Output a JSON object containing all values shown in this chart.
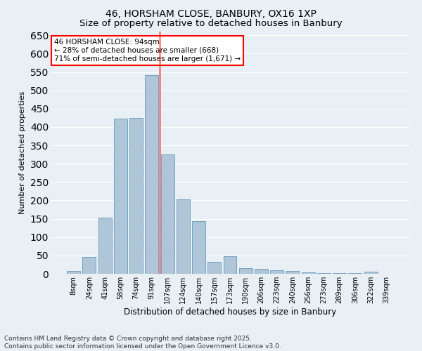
{
  "title": "46, HORSHAM CLOSE, BANBURY, OX16 1XP",
  "subtitle": "Size of property relative to detached houses in Banbury",
  "xlabel": "Distribution of detached houses by size in Banbury",
  "ylabel": "Number of detached properties",
  "categories": [
    "8sqm",
    "24sqm",
    "41sqm",
    "58sqm",
    "74sqm",
    "91sqm",
    "107sqm",
    "124sqm",
    "140sqm",
    "157sqm",
    "173sqm",
    "190sqm",
    "206sqm",
    "223sqm",
    "240sqm",
    "256sqm",
    "273sqm",
    "289sqm",
    "306sqm",
    "322sqm",
    "339sqm"
  ],
  "values": [
    7,
    45,
    153,
    422,
    425,
    542,
    325,
    203,
    143,
    33,
    48,
    15,
    13,
    9,
    7,
    4,
    2,
    1,
    1,
    5,
    0
  ],
  "bar_color": "#aec6d8",
  "bar_edgecolor": "#6699bb",
  "background_color": "#e8eff5",
  "grid_color": "#ffffff",
  "vline_index": 5.5,
  "vline_color": "red",
  "annotation_title": "46 HORSHAM CLOSE: 94sqm",
  "annotation_line1": "← 28% of detached houses are smaller (668)",
  "annotation_line2": "71% of semi-detached houses are larger (1,671) →",
  "annotation_box_color": "red",
  "ylim": [
    0,
    660
  ],
  "yticks": [
    0,
    50,
    100,
    150,
    200,
    250,
    300,
    350,
    400,
    450,
    500,
    550,
    600,
    650
  ],
  "footer_line1": "Contains HM Land Registry data © Crown copyright and database right 2025.",
  "footer_line2": "Contains public sector information licensed under the Open Government Licence v3.0.",
  "title_fontsize": 10,
  "subtitle_fontsize": 9.5,
  "xlabel_fontsize": 8.5,
  "ylabel_fontsize": 8,
  "tick_fontsize": 7,
  "footer_fontsize": 6.5,
  "ann_fontsize": 7.5
}
